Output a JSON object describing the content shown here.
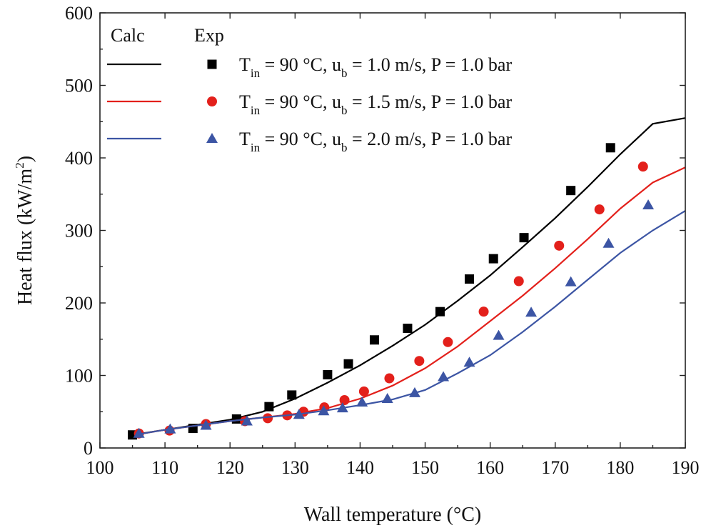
{
  "chart_data": {
    "type": "line+scatter",
    "title": "",
    "xlabel": "Wall temperature (°C)",
    "ylabel": "Heat flux (kW/m",
    "ylabel_sup": "2",
    "ylabel_end": ")",
    "xlim": [
      100,
      190
    ],
    "ylim": [
      0,
      600
    ],
    "xticks": [
      100,
      110,
      120,
      130,
      140,
      150,
      160,
      170,
      180,
      190
    ],
    "yticks": [
      0,
      100,
      200,
      300,
      400,
      500,
      600
    ],
    "legend": {
      "position": "top-left",
      "calc_header": "Calc",
      "exp_header": "Exp"
    },
    "series": [
      {
        "name": "Tin = 90 °C, ub = 1.0 m/s, P = 1.0 bar",
        "label_parts": [
          "T",
          "in",
          " = 90 °C, u",
          "b",
          " = 1.0 m/s, P = 1.0 bar"
        ],
        "color": "#000000",
        "marker": "square",
        "calc": {
          "x": [
            105,
            110,
            115,
            120,
            125,
            130,
            135,
            140,
            145,
            150,
            155,
            160,
            165,
            170,
            175,
            180,
            185,
            190
          ],
          "y": [
            18,
            25,
            32,
            39,
            50,
            68,
            90,
            114,
            141,
            170,
            203,
            238,
            277,
            317,
            360,
            405,
            447,
            455
          ]
        },
        "exp": {
          "x": [
            105,
            114.3,
            121,
            126,
            129.5,
            135,
            138.2,
            142.2,
            147.3,
            152.3,
            156.8,
            160.5,
            165.2,
            172.4,
            178.5
          ],
          "y": [
            18,
            27,
            40,
            57,
            73,
            101,
            116,
            149,
            165,
            188,
            233,
            261,
            290,
            355,
            414
          ]
        }
      },
      {
        "name": "Tin = 90 °C, ub = 1.5 m/s, P = 1.0 bar",
        "label_parts": [
          "T",
          "in",
          " = 90 °C, u",
          "b",
          " = 1.5 m/s, P = 1.0 bar"
        ],
        "color": "#e3201b",
        "marker": "circle",
        "calc": {
          "x": [
            106,
            110,
            115,
            120,
            125,
            130,
            135,
            140,
            145,
            150,
            155,
            160,
            165,
            170,
            175,
            180,
            185,
            190
          ],
          "y": [
            19,
            25,
            31,
            37,
            42,
            47,
            55,
            68,
            86,
            110,
            140,
            175,
            210,
            248,
            288,
            330,
            366,
            387
          ]
        },
        "exp": {
          "x": [
            106,
            110.7,
            116.3,
            122.3,
            125.8,
            128.8,
            131.3,
            134.5,
            137.6,
            140.6,
            144.5,
            149.1,
            153.5,
            159,
            164.4,
            170.6,
            176.8,
            183.5
          ],
          "y": [
            20,
            24,
            33,
            37,
            41,
            45,
            50,
            56,
            66,
            78,
            96,
            120,
            146,
            188,
            230,
            279,
            329,
            388
          ]
        }
      },
      {
        "name": "Tin = 90 °C, ub = 2.0 m/s, P = 1.0 bar",
        "label_parts": [
          "T",
          "in",
          " = 90 °C, u",
          "b",
          " = 2.0 m/s, P = 1.0 bar"
        ],
        "color": "#3c55a4",
        "marker": "triangle",
        "calc": {
          "x": [
            106,
            110,
            115,
            120,
            125,
            130,
            135,
            140,
            145,
            150,
            155,
            160,
            165,
            170,
            175,
            180,
            185,
            190
          ],
          "y": [
            19,
            25,
            31,
            37,
            42,
            46,
            52,
            59,
            67,
            80,
            103,
            128,
            160,
            195,
            232,
            269,
            300,
            327
          ]
        },
        "exp": {
          "x": [
            106,
            110.8,
            116.3,
            122.6,
            130.6,
            134.4,
            137.3,
            140.3,
            144.2,
            148.4,
            152.8,
            156.8,
            161.3,
            166.3,
            172.4,
            178.2,
            184.3
          ],
          "y": [
            20,
            26,
            31,
            37,
            46,
            51,
            55,
            63,
            68,
            76,
            98,
            118,
            155,
            187,
            229,
            282,
            335
          ]
        }
      }
    ]
  }
}
